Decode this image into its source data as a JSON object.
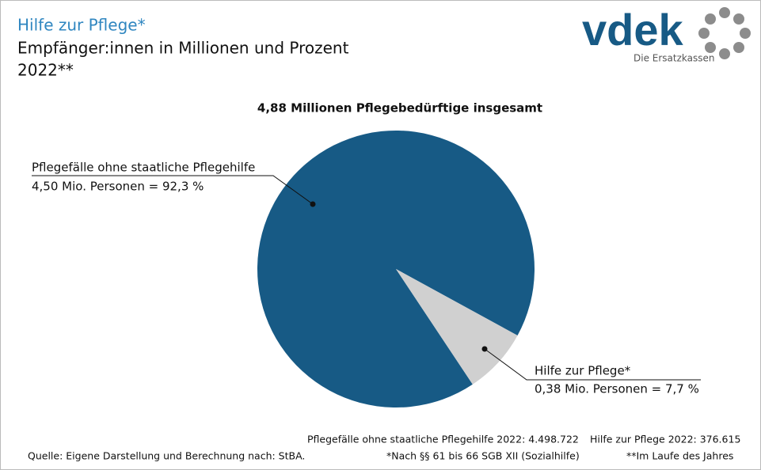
{
  "chart_data": {
    "type": "pie",
    "title": "Hilfe zur Pflege*",
    "subtitle": [
      "Empfänger:innen in Millionen und Prozent",
      "2022**"
    ],
    "chart_title": "4,88 Millionen Pflegebedürftige insgesamt",
    "categories": [
      "Pflegefälle ohne staatliche Pflegehilfe",
      "Hilfe zur Pflege*"
    ],
    "values": [
      92.3,
      7.7
    ],
    "value_labels": [
      "4,50 Mio. Personen = 92,3 %",
      "0,38 Mio. Personen = 7,7 %"
    ],
    "colors": [
      "#175a85",
      "#d0d0d0"
    ],
    "notes": [
      "Pflegefälle ohne staatliche Pflegehilfe 2022: 4.498.722",
      "Hilfe zur Pflege 2022: 376.615"
    ],
    "source": "Quelle: Eigene Darstellung und Berechnung nach: StBA.",
    "footnotes": [
      "*Nach §§ 61 bis 66 SGB XII (Sozialhilfe)",
      "**Im Laufe des Jahres"
    ]
  },
  "logo": {
    "text": "vdek",
    "tagline": "Die Ersatzkassen"
  }
}
